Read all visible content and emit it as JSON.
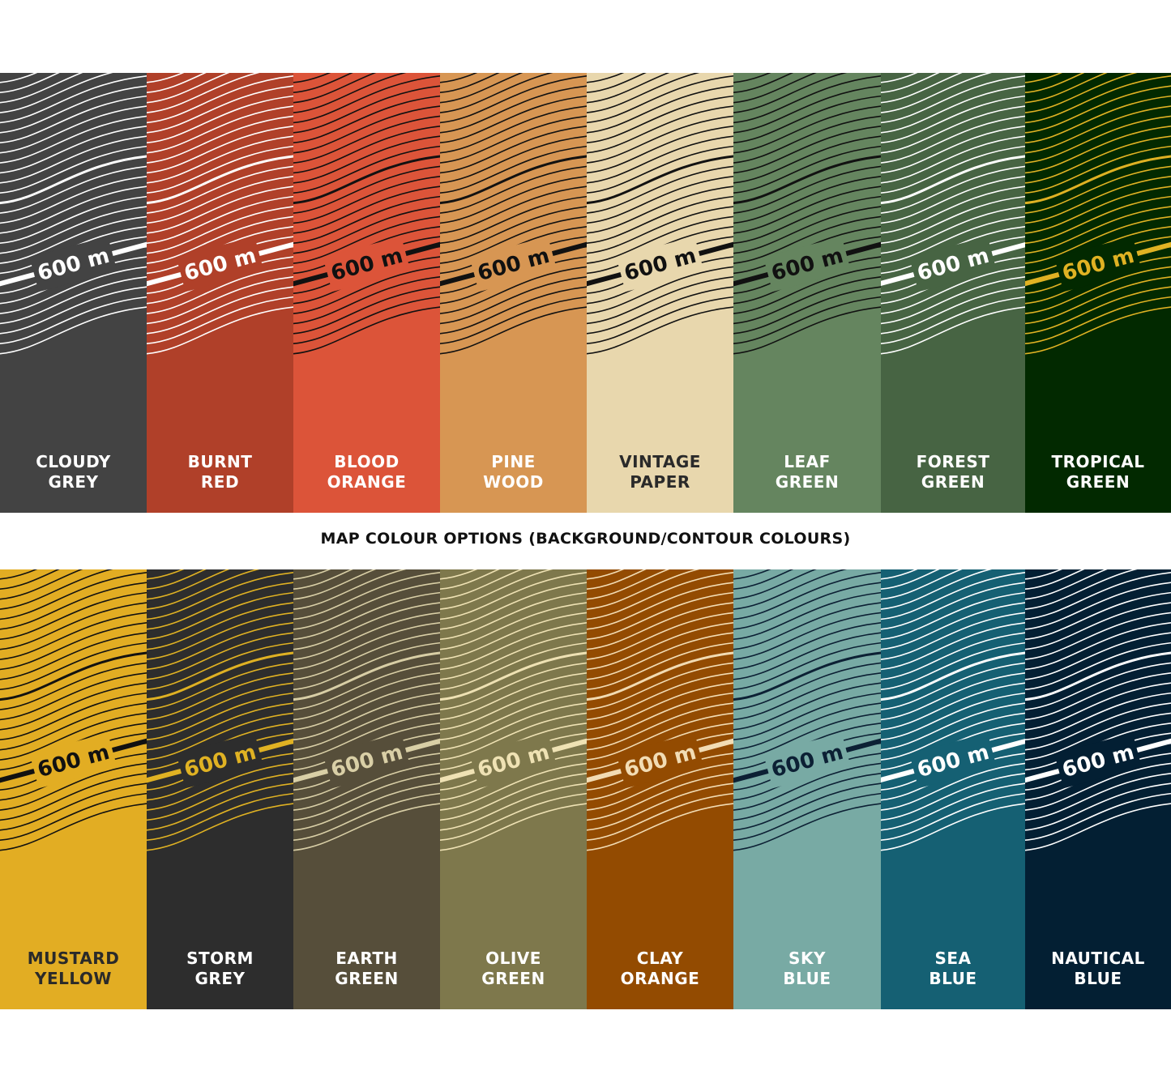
{
  "title": "MAP COLOUR OPTIONS (BACKGROUND/CONTOUR COLOURS)",
  "contour_label": "600 m",
  "rows": [
    [
      {
        "name": [
          "CLOUDY",
          "GREY"
        ],
        "background": "#434343",
        "contour": "#ffffff",
        "text": "#ffffff"
      },
      {
        "name": [
          "BURNT",
          "RED"
        ],
        "background": "#b04029",
        "contour": "#ffffff",
        "text": "#ffffff"
      },
      {
        "name": [
          "BLOOD",
          "ORANGE"
        ],
        "background": "#dc5439",
        "contour": "#111111",
        "text": "#ffffff"
      },
      {
        "name": [
          "PINE",
          "WOOD"
        ],
        "background": "#d79653",
        "contour": "#111111",
        "text": "#ffffff"
      },
      {
        "name": [
          "VINTAGE",
          "PAPER"
        ],
        "background": "#e8d7ad",
        "contour": "#111111",
        "text": "#2a2a2a"
      },
      {
        "name": [
          "LEAF",
          "GREEN"
        ],
        "background": "#65855f",
        "contour": "#111111",
        "text": "#ffffff"
      },
      {
        "name": [
          "FOREST",
          "GREEN"
        ],
        "background": "#476443",
        "contour": "#ffffff",
        "text": "#ffffff"
      },
      {
        "name": [
          "TROPICAL",
          "GREEN"
        ],
        "background": "#022900",
        "contour": "#e0b223",
        "text": "#ffffff"
      }
    ],
    [
      {
        "name": [
          "MUSTARD",
          "YELLOW"
        ],
        "background": "#e2ad23",
        "contour": "#111111",
        "text": "#2a2a2a"
      },
      {
        "name": [
          "STORM",
          "GREY"
        ],
        "background": "#2d2d2d",
        "contour": "#e0b223",
        "text": "#ffffff"
      },
      {
        "name": [
          "EARTH",
          "GREEN"
        ],
        "background": "#564e3a",
        "contour": "#d9cfa6",
        "text": "#ffffff"
      },
      {
        "name": [
          "OLIVE",
          "GREEN"
        ],
        "background": "#7e784c",
        "contour": "#efe2b4",
        "text": "#ffffff"
      },
      {
        "name": [
          "CLAY",
          "ORANGE"
        ],
        "background": "#934b01",
        "contour": "#f2dcb4",
        "text": "#ffffff"
      },
      {
        "name": [
          "SKY",
          "BLUE"
        ],
        "background": "#78aaa4",
        "contour": "#0c2034",
        "text": "#ffffff"
      },
      {
        "name": [
          "SEA",
          "BLUE"
        ],
        "background": "#156073",
        "contour": "#ffffff",
        "text": "#ffffff"
      },
      {
        "name": [
          "NAUTICAL",
          "BLUE"
        ],
        "background": "#031f33",
        "contour": "#ffffff",
        "text": "#ffffff"
      }
    ]
  ]
}
